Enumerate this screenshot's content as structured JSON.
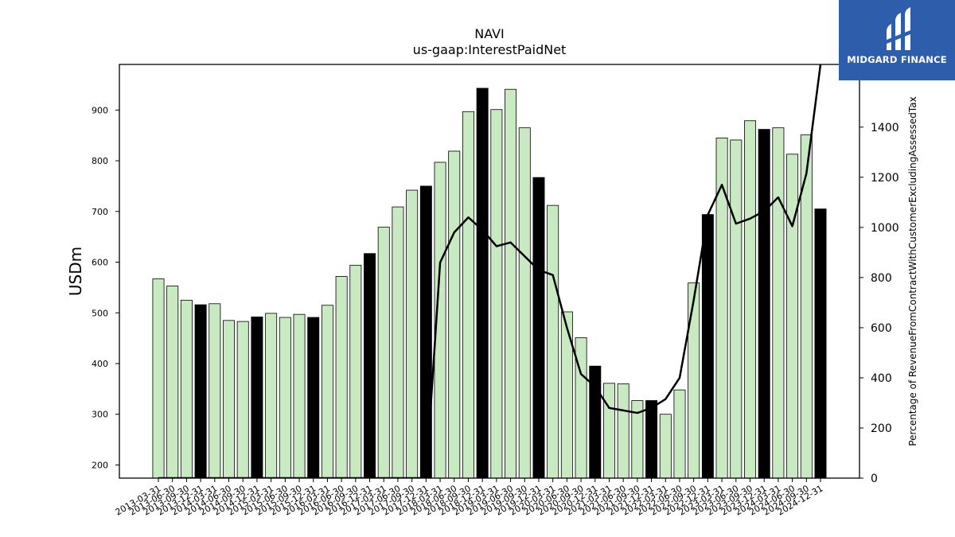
{
  "chart_data": {
    "type": "bar",
    "title": "NAVI",
    "subtitle": "us-gaap:InterestPaidNet",
    "ylabel": "USDm",
    "y2label": "Percentage of RevenueFromContractWithCustomerExcludingAssessedTax",
    "ylim": [
      174,
      990
    ],
    "y2lim": [
      0,
      1650
    ],
    "yticks": [
      200,
      300,
      400,
      500,
      600,
      700,
      800,
      900
    ],
    "y2ticks": [
      0,
      200,
      400,
      600,
      800,
      1000,
      1200,
      1400
    ],
    "grid": false,
    "categories": [
      "2013-03-31",
      "2013-06-30",
      "2013-09-30",
      "2013-12-31",
      "2014-03-31",
      "2014-06-30",
      "2014-09-30",
      "2014-12-31",
      "2015-03-31",
      "2015-06-30",
      "2015-09-30",
      "2015-12-31",
      "2016-03-31",
      "2016-06-30",
      "2016-09-30",
      "2016-12-31",
      "2017-03-31",
      "2017-06-30",
      "2017-09-30",
      "2017-12-31",
      "2018-03-31",
      "2018-06-30",
      "2018-09-30",
      "2018-12-31",
      "2019-03-31",
      "2019-06-30",
      "2019-09-30",
      "2019-12-31",
      "2020-03-31",
      "2020-06-30",
      "2020-09-30",
      "2020-12-31",
      "2021-03-31",
      "2021-06-30",
      "2021-09-30",
      "2021-12-31",
      "2022-03-31",
      "2022-06-30",
      "2022-09-30",
      "2022-12-31",
      "2023-03-31",
      "2023-06-30",
      "2023-09-30",
      "2023-12-31",
      "2024-03-31",
      "2024-06-30",
      "2024-09-30",
      "2024-12-31"
    ],
    "series": [
      {
        "type": "bar",
        "values": [
          567,
          553,
          525,
          516,
          518,
          485,
          483,
          492,
          499,
          491,
          497,
          491,
          515,
          572,
          594,
          617,
          669,
          709,
          742,
          750,
          797,
          819,
          897,
          943,
          901,
          941,
          865,
          767,
          712,
          502,
          451,
          395,
          361,
          360,
          327,
          327,
          300,
          348,
          559,
          694,
          845,
          841,
          879,
          862,
          865,
          813,
          851,
          705
        ],
        "highlight": [
          3,
          7,
          11,
          15,
          19,
          23,
          27,
          31,
          35,
          39,
          43,
          47
        ]
      },
      {
        "type": "line",
        "axis": "right",
        "values": [
          0,
          0,
          0,
          0,
          0,
          0,
          0,
          0,
          0,
          0,
          0,
          0,
          0,
          0,
          0,
          0,
          0,
          0,
          0,
          0,
          860,
          980,
          1040,
          990,
          925,
          940,
          885,
          830,
          810,
          600,
          415,
          365,
          280,
          270,
          260,
          280,
          315,
          400,
          710,
          1050,
          1170,
          1015,
          1035,
          1065,
          1120,
          1005,
          1215,
          1650
        ]
      }
    ],
    "colors": {
      "bar": "#c9e9c2",
      "bar_highlight": "#000000",
      "line": "#000000"
    }
  },
  "logo": {
    "text": "MIDGARD FINANCE",
    "color": "#2d5dab"
  }
}
